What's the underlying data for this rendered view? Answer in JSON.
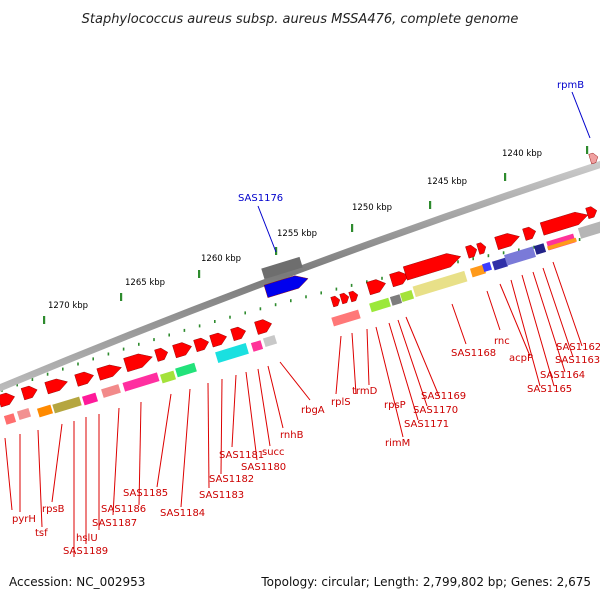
{
  "title": "Staphylococcus aureus subsp. aureus MSSA476, complete genome",
  "footer": {
    "accession": "Accession: NC_002953",
    "summary": "Topology: circular; Length: 2,799,802 bp; Genes: 2,675"
  },
  "scale_labels": [
    "1240 kbp",
    "1245 kbp",
    "1250 kbp",
    "1255 kbp",
    "1260 kbp",
    "1265 kbp",
    "1270 kbp"
  ],
  "gene_labels": {
    "red": [
      "rnc",
      "SAS1162",
      "acpP",
      "SAS1163",
      "SAS1164",
      "SAS1165",
      "SAS1168",
      "rplS",
      "trmD",
      "rpsP",
      "rimM",
      "SAS1169",
      "SAS1170",
      "SAS1171",
      "rbgA",
      "rnhB",
      "succ",
      "SAS1180",
      "SAS1181",
      "SAS1182",
      "SAS1183",
      "SAS1184",
      "SAS1185",
      "SAS1186",
      "SAS1187",
      "hslU",
      "SAS1189",
      "pyrH",
      "tsf",
      "rpsB"
    ],
    "blue": [
      "rpmB",
      "SAS1176"
    ]
  },
  "colors": {
    "gene_red": "#ff0000",
    "label_red": "#cc0000",
    "label_blue": "#0000cc",
    "backbone": "#888888",
    "tick_green": "#2e8b2e"
  }
}
